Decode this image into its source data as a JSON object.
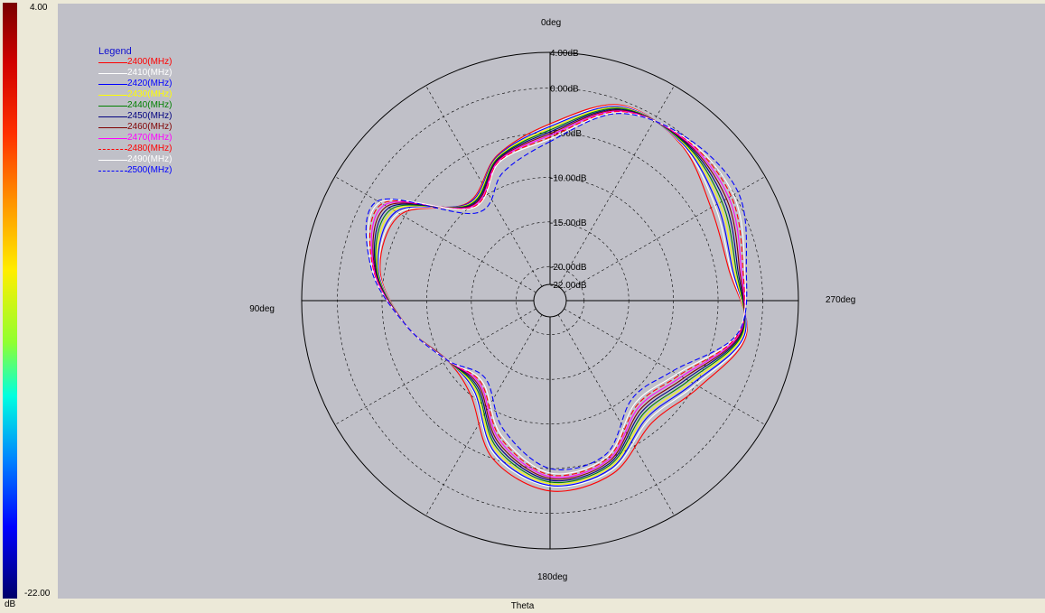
{
  "colorbar": {
    "top_label": "4.00",
    "bottom_label": "-22.00",
    "unit": "dB"
  },
  "axis_label": "Theta",
  "chart_data": {
    "type": "polar-line",
    "title": "",
    "angle_labels": [
      "0deg",
      "90deg",
      "180deg",
      "270deg"
    ],
    "radial_labels": [
      "4.00dB",
      "0.00dB",
      "-5.00dB",
      "-10.00dB",
      "-15.00dB",
      "-20.00dB",
      "-22.00dB"
    ],
    "radial_ticks": [
      4,
      0,
      -5,
      -10,
      -15,
      -20,
      -22
    ],
    "rlim": [
      -22,
      4
    ],
    "grid": true,
    "angle_grid_step_deg": 30,
    "legend_title": "Legend",
    "legend_position": "top-left",
    "angles_deg": [
      0,
      20,
      40,
      60,
      80,
      100,
      120,
      140,
      160,
      180,
      200,
      220,
      240,
      260,
      280,
      300,
      320,
      340
    ],
    "series": [
      {
        "name": "2400(MHz)",
        "color": "#ff0000",
        "dash": false,
        "values": [
          -4.0,
          -6.5,
          -9.5,
          -4.5,
          -4.5,
          -7.5,
          -10.5,
          -10.0,
          -5.0,
          -2.5,
          -3.2,
          -6.0,
          -4.5,
          -1.5,
          -3.5,
          -3.0,
          -1.0,
          -0.5
        ]
      },
      {
        "name": "2410(MHz)",
        "color": "#ffffff",
        "dash": false,
        "values": [
          -4.2,
          -6.6,
          -9.6,
          -4.2,
          -4.4,
          -7.5,
          -10.5,
          -10.5,
          -5.5,
          -3.0,
          -3.6,
          -6.5,
          -5.0,
          -1.6,
          -3.3,
          -2.5,
          -0.9,
          -0.6
        ]
      },
      {
        "name": "2420(MHz)",
        "color": "#0000ff",
        "dash": false,
        "values": [
          -4.3,
          -6.6,
          -9.6,
          -3.9,
          -4.3,
          -7.5,
          -10.5,
          -10.6,
          -5.7,
          -3.1,
          -3.8,
          -6.8,
          -5.3,
          -1.7,
          -3.1,
          -2.2,
          -0.8,
          -0.7
        ]
      },
      {
        "name": "2430(MHz)",
        "color": "#ffff00",
        "dash": false,
        "values": [
          -4.5,
          -6.7,
          -9.7,
          -3.6,
          -4.2,
          -7.5,
          -10.5,
          -10.8,
          -6.0,
          -3.3,
          -4.0,
          -7.1,
          -5.6,
          -1.9,
          -2.9,
          -1.9,
          -0.7,
          -0.8
        ]
      },
      {
        "name": "2440(MHz)",
        "color": "#008000",
        "dash": false,
        "values": [
          -4.7,
          -6.8,
          -9.8,
          -3.3,
          -4.1,
          -7.5,
          -10.5,
          -11.0,
          -6.3,
          -3.5,
          -4.2,
          -7.4,
          -5.9,
          -2.0,
          -2.7,
          -1.6,
          -0.6,
          -0.9
        ]
      },
      {
        "name": "2450(MHz)",
        "color": "#000080",
        "dash": false,
        "values": [
          -4.9,
          -6.9,
          -9.9,
          -3.0,
          -4.0,
          -7.5,
          -10.5,
          -11.2,
          -6.6,
          -3.7,
          -4.4,
          -7.7,
          -6.2,
          -2.1,
          -2.5,
          -1.3,
          -0.5,
          -1.0
        ]
      },
      {
        "name": "2460(MHz)",
        "color": "#800000",
        "dash": false,
        "values": [
          -5.1,
          -7.0,
          -10.0,
          -2.7,
          -3.9,
          -7.5,
          -10.5,
          -11.4,
          -6.9,
          -3.9,
          -4.6,
          -8.0,
          -6.5,
          -2.2,
          -2.3,
          -1.0,
          -0.4,
          -1.1
        ]
      },
      {
        "name": "2470(MHz)",
        "color": "#ff00ff",
        "dash": false,
        "values": [
          -5.3,
          -7.1,
          -10.1,
          -2.4,
          -3.8,
          -7.5,
          -10.5,
          -11.6,
          -7.2,
          -4.1,
          -4.8,
          -8.3,
          -6.8,
          -2.3,
          -2.1,
          -0.7,
          -0.3,
          -1.2
        ]
      },
      {
        "name": "2480(MHz)",
        "color": "#ff0000",
        "dash": true,
        "values": [
          -5.5,
          -7.2,
          -10.2,
          -2.1,
          -3.7,
          -7.5,
          -10.5,
          -11.8,
          -7.5,
          -4.3,
          -5.0,
          -8.6,
          -7.1,
          -2.4,
          -1.9,
          -0.4,
          -0.2,
          -1.3
        ]
      },
      {
        "name": "2490(MHz)",
        "color": "#ffffff",
        "dash": false,
        "values": [
          -5.7,
          -7.3,
          -10.3,
          -1.8,
          -3.6,
          -7.5,
          -10.5,
          -12.0,
          -7.8,
          -4.5,
          -5.2,
          -8.9,
          -7.4,
          -2.5,
          -1.7,
          -0.1,
          -0.1,
          -1.4
        ]
      },
      {
        "name": "2500(MHz)",
        "color": "#0000ff",
        "dash": true,
        "values": [
          -6.0,
          -8.5,
          -11.0,
          -1.5,
          -3.5,
          -7.5,
          -10.5,
          -12.5,
          -8.5,
          -5.0,
          -5.5,
          -9.5,
          -8.0,
          -2.5,
          -1.5,
          0.5,
          0.0,
          -1.5
        ]
      }
    ]
  }
}
